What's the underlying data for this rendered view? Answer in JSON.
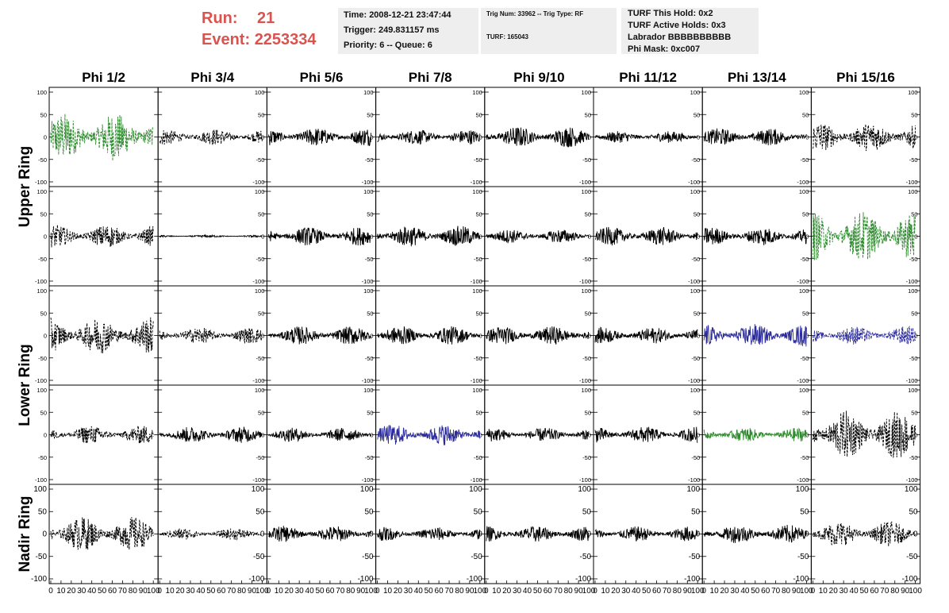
{
  "header": {
    "run_label": "Run:",
    "run_value": "21",
    "event_label": "Event:",
    "event_value": "2253334",
    "time": "Time: 2008-12-21 23:47:44",
    "trigger": "Trigger: 249.831157 ms",
    "priority": "Priority: 6 -- Queue: 6",
    "trig_num": "Trig Num: 33962 -- Trig Type: RF",
    "turf": "TURF: 165043",
    "turf_hold": "TURF This Hold: 0x2",
    "turf_active": "TURF Active Holds: 0x3",
    "labrador": "Labrador BBBBBBBBBB",
    "phi_mask": "Phi Mask: 0xc007"
  },
  "chart_data": {
    "type": "line",
    "columns": [
      "Phi 1/2",
      "Phi 3/4",
      "Phi 5/6",
      "Phi 7/8",
      "Phi 9/10",
      "Phi 11/12",
      "Phi 13/14",
      "Phi 15/16"
    ],
    "ring_labels": [
      "Upper Ring",
      "Lower Ring",
      "Nadir Ring"
    ],
    "rows_per_ring": [
      2,
      2,
      1
    ],
    "x_range": [
      0,
      100
    ],
    "y_range": [
      -100,
      100
    ],
    "y_ticks": [
      "100",
      "50",
      "0",
      "-50",
      "-100"
    ],
    "x_ticks": [
      "0",
      "10",
      "20",
      "30",
      "40",
      "50",
      "60",
      "70",
      "80",
      "90",
      "100"
    ],
    "colors": {
      "green": "#2e8b2e",
      "blue": "#2b2b9b",
      "black": "#000000"
    },
    "panels": [
      [
        {
          "color": "green",
          "dash": true,
          "amp": 42
        },
        {
          "color": "black",
          "dash": true,
          "amp": 14
        },
        {
          "color": "black",
          "dash": false,
          "amp": 16
        },
        {
          "color": "black",
          "dash": false,
          "amp": 13
        },
        {
          "color": "black",
          "dash": false,
          "amp": 18
        },
        {
          "color": "black",
          "dash": false,
          "amp": 10
        },
        {
          "color": "black",
          "dash": false,
          "amp": 15
        },
        {
          "color": "black",
          "dash": true,
          "amp": 26
        }
      ],
      [
        {
          "color": "black",
          "dash": true,
          "amp": 20
        },
        {
          "color": "black",
          "dash": false,
          "amp": 2
        },
        {
          "color": "black",
          "dash": false,
          "amp": 16
        },
        {
          "color": "black",
          "dash": false,
          "amp": 18
        },
        {
          "color": "black",
          "dash": false,
          "amp": 12
        },
        {
          "color": "black",
          "dash": false,
          "amp": 16
        },
        {
          "color": "black",
          "dash": false,
          "amp": 16
        },
        {
          "color": "green",
          "dash": true,
          "amp": 44
        }
      ],
      [
        {
          "color": "black",
          "dash": true,
          "amp": 32
        },
        {
          "color": "black",
          "dash": true,
          "amp": 14
        },
        {
          "color": "black",
          "dash": false,
          "amp": 16
        },
        {
          "color": "black",
          "dash": false,
          "amp": 16
        },
        {
          "color": "black",
          "dash": false,
          "amp": 16
        },
        {
          "color": "black",
          "dash": false,
          "amp": 14
        },
        {
          "color": "blue",
          "dash": false,
          "amp": 20
        },
        {
          "color": "blue",
          "dash": true,
          "amp": 16
        }
      ],
      [
        {
          "color": "black",
          "dash": true,
          "amp": 16
        },
        {
          "color": "black",
          "dash": false,
          "amp": 14
        },
        {
          "color": "black",
          "dash": false,
          "amp": 12
        },
        {
          "color": "blue",
          "dash": false,
          "amp": 18
        },
        {
          "color": "black",
          "dash": false,
          "amp": 12
        },
        {
          "color": "black",
          "dash": false,
          "amp": 14
        },
        {
          "color": "green",
          "dash": false,
          "amp": 12
        },
        {
          "color": "black",
          "dash": true,
          "amp": 42
        }
      ],
      [
        {
          "color": "black",
          "dash": true,
          "amp": 30
        },
        {
          "color": "black",
          "dash": true,
          "amp": 10
        },
        {
          "color": "black",
          "dash": false,
          "amp": 14
        },
        {
          "color": "black",
          "dash": false,
          "amp": 12
        },
        {
          "color": "black",
          "dash": false,
          "amp": 14
        },
        {
          "color": "black",
          "dash": false,
          "amp": 13
        },
        {
          "color": "black",
          "dash": false,
          "amp": 16
        },
        {
          "color": "black",
          "dash": true,
          "amp": 22
        }
      ]
    ]
  }
}
